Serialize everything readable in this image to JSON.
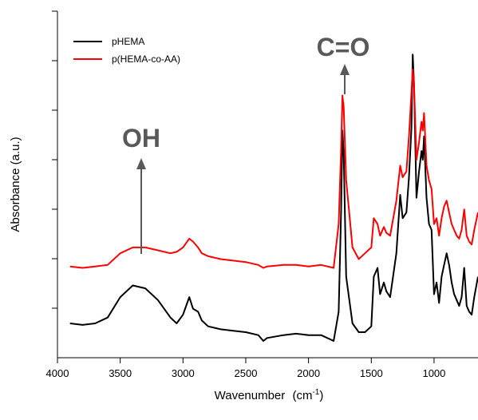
{
  "chart_data": {
    "type": "line",
    "title": "",
    "xlabel": "Wavenumber",
    "xlabel_unit": "(cm",
    "xlabel_unit_sup": "-1",
    "xlabel_unit_close": ")",
    "ylabel": "Absorbance (a.u.)",
    "xlim": [
      4000,
      650
    ],
    "x_reversed": true,
    "y_tick_labels_shown": false,
    "grid": false,
    "legend_position": "top-left",
    "x_ticks": [
      {
        "value": 4000,
        "label": "4000"
      },
      {
        "value": 3500,
        "label": "3500"
      },
      {
        "value": 3000,
        "label": "3000"
      },
      {
        "value": 2500,
        "label": "2500"
      },
      {
        "value": 2000,
        "label": "2000"
      },
      {
        "value": 1500,
        "label": "1500"
      },
      {
        "value": 1000,
        "label": "1000"
      }
    ],
    "series": [
      {
        "name": "pHEMA",
        "color": "#000000",
        "points": [
          [
            3900,
            0.06
          ],
          [
            3800,
            0.055
          ],
          [
            3700,
            0.06
          ],
          [
            3600,
            0.08
          ],
          [
            3500,
            0.15
          ],
          [
            3400,
            0.19
          ],
          [
            3300,
            0.18
          ],
          [
            3200,
            0.14
          ],
          [
            3100,
            0.08
          ],
          [
            3050,
            0.06
          ],
          [
            3000,
            0.09
          ],
          [
            2950,
            0.15
          ],
          [
            2920,
            0.11
          ],
          [
            2880,
            0.1
          ],
          [
            2850,
            0.07
          ],
          [
            2800,
            0.05
          ],
          [
            2700,
            0.04
          ],
          [
            2600,
            0.035
          ],
          [
            2500,
            0.03
          ],
          [
            2400,
            0.02
          ],
          [
            2360,
            0.0
          ],
          [
            2330,
            0.01
          ],
          [
            2200,
            0.02
          ],
          [
            2100,
            0.025
          ],
          [
            2000,
            0.02
          ],
          [
            1900,
            0.02
          ],
          [
            1800,
            0.0
          ],
          [
            1760,
            0.1
          ],
          [
            1740,
            0.45
          ],
          [
            1730,
            0.72
          ],
          [
            1720,
            0.64
          ],
          [
            1700,
            0.22
          ],
          [
            1650,
            0.06
          ],
          [
            1600,
            0.03
          ],
          [
            1550,
            0.03
          ],
          [
            1500,
            0.05
          ],
          [
            1480,
            0.22
          ],
          [
            1450,
            0.25
          ],
          [
            1430,
            0.16
          ],
          [
            1400,
            0.2
          ],
          [
            1380,
            0.17
          ],
          [
            1350,
            0.15
          ],
          [
            1300,
            0.3
          ],
          [
            1270,
            0.5
          ],
          [
            1250,
            0.42
          ],
          [
            1220,
            0.44
          ],
          [
            1200,
            0.56
          ],
          [
            1180,
            0.73
          ],
          [
            1170,
            0.98
          ],
          [
            1160,
            0.88
          ],
          [
            1140,
            0.49
          ],
          [
            1120,
            0.58
          ],
          [
            1100,
            0.65
          ],
          [
            1090,
            0.62
          ],
          [
            1080,
            0.7
          ],
          [
            1060,
            0.49
          ],
          [
            1040,
            0.4
          ],
          [
            1020,
            0.38
          ],
          [
            1000,
            0.16
          ],
          [
            980,
            0.2
          ],
          [
            960,
            0.13
          ],
          [
            940,
            0.22
          ],
          [
            920,
            0.26
          ],
          [
            900,
            0.3
          ],
          [
            880,
            0.26
          ],
          [
            860,
            0.2
          ],
          [
            840,
            0.16
          ],
          [
            820,
            0.14
          ],
          [
            800,
            0.12
          ],
          [
            780,
            0.15
          ],
          [
            760,
            0.25
          ],
          [
            740,
            0.12
          ],
          [
            720,
            0.1
          ],
          [
            700,
            0.09
          ],
          [
            680,
            0.15
          ],
          [
            650,
            0.22
          ]
        ]
      },
      {
        "name": "p(HEMA-co-AA)",
        "color": "#ff0000",
        "points": [
          [
            3900,
            0.255
          ],
          [
            3800,
            0.25
          ],
          [
            3700,
            0.255
          ],
          [
            3600,
            0.26
          ],
          [
            3500,
            0.3
          ],
          [
            3400,
            0.32
          ],
          [
            3300,
            0.32
          ],
          [
            3200,
            0.31
          ],
          [
            3100,
            0.3
          ],
          [
            3050,
            0.305
          ],
          [
            3000,
            0.32
          ],
          [
            2950,
            0.35
          ],
          [
            2920,
            0.34
          ],
          [
            2880,
            0.32
          ],
          [
            2850,
            0.3
          ],
          [
            2800,
            0.29
          ],
          [
            2700,
            0.28
          ],
          [
            2600,
            0.275
          ],
          [
            2500,
            0.27
          ],
          [
            2400,
            0.26
          ],
          [
            2360,
            0.25
          ],
          [
            2330,
            0.255
          ],
          [
            2200,
            0.26
          ],
          [
            2100,
            0.26
          ],
          [
            2000,
            0.255
          ],
          [
            1900,
            0.26
          ],
          [
            1800,
            0.25
          ],
          [
            1760,
            0.4
          ],
          [
            1740,
            0.66
          ],
          [
            1730,
            0.84
          ],
          [
            1720,
            0.8
          ],
          [
            1700,
            0.55
          ],
          [
            1650,
            0.32
          ],
          [
            1600,
            0.28
          ],
          [
            1550,
            0.3
          ],
          [
            1500,
            0.32
          ],
          [
            1480,
            0.42
          ],
          [
            1450,
            0.4
          ],
          [
            1430,
            0.36
          ],
          [
            1400,
            0.39
          ],
          [
            1380,
            0.37
          ],
          [
            1350,
            0.36
          ],
          [
            1300,
            0.48
          ],
          [
            1270,
            0.6
          ],
          [
            1250,
            0.56
          ],
          [
            1220,
            0.58
          ],
          [
            1200,
            0.7
          ],
          [
            1180,
            0.85
          ],
          [
            1170,
            0.93
          ],
          [
            1160,
            0.88
          ],
          [
            1140,
            0.62
          ],
          [
            1120,
            0.68
          ],
          [
            1100,
            0.75
          ],
          [
            1090,
            0.72
          ],
          [
            1080,
            0.78
          ],
          [
            1060,
            0.6
          ],
          [
            1040,
            0.55
          ],
          [
            1020,
            0.52
          ],
          [
            1000,
            0.4
          ],
          [
            980,
            0.42
          ],
          [
            960,
            0.36
          ],
          [
            940,
            0.42
          ],
          [
            920,
            0.46
          ],
          [
            900,
            0.48
          ],
          [
            880,
            0.44
          ],
          [
            860,
            0.4
          ],
          [
            840,
            0.38
          ],
          [
            820,
            0.36
          ],
          [
            800,
            0.35
          ],
          [
            780,
            0.38
          ],
          [
            760,
            0.45
          ],
          [
            740,
            0.36
          ],
          [
            720,
            0.34
          ],
          [
            700,
            0.33
          ],
          [
            680,
            0.38
          ],
          [
            650,
            0.44
          ]
        ]
      }
    ],
    "annotations": [
      {
        "text": "OH",
        "x": 3390
      },
      {
        "text": "C=O",
        "x": 1715
      }
    ]
  }
}
